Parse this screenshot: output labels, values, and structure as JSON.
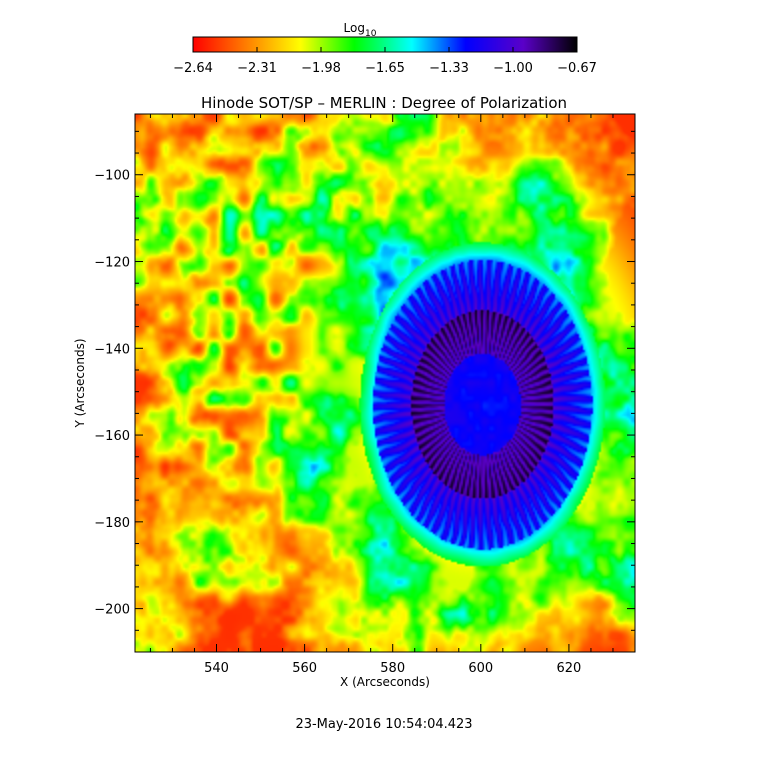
{
  "chart_data": {
    "type": "heatmap",
    "title": "Hinode SOT/SP – MERLIN : Degree of Polarization",
    "xlabel": "X (Arcseconds)",
    "ylabel": "Y (Arcseconds)",
    "xlim": [
      521.5,
      635
    ],
    "ylim": [
      -210,
      -86
    ],
    "xticks": [
      540,
      560,
      580,
      600,
      620
    ],
    "yticks": [
      -100,
      -120,
      -140,
      -160,
      -180,
      -200
    ],
    "colorbar": {
      "label_base": "Log",
      "label_sub": "10",
      "range": [
        -2.64,
        -0.67
      ],
      "ticks": [
        "-2.64",
        "-2.31",
        "-1.98",
        "-1.65",
        "-1.33",
        "-1.00",
        "-0.67"
      ],
      "colormap": [
        "#ff0000",
        "#ff7f00",
        "#ffff00",
        "#00ff00",
        "#00ffff",
        "#0000ff",
        "#5a00c8",
        "#000000"
      ]
    },
    "feature": {
      "name": "sunspot",
      "umbra_center": [
        600.5,
        -153
      ],
      "penumbra_extent_x": [
        575,
        618
      ],
      "penumbra_extent_y": [
        -188,
        -125
      ]
    }
  },
  "timestamp": "23-May-2016 10:54:04.423"
}
